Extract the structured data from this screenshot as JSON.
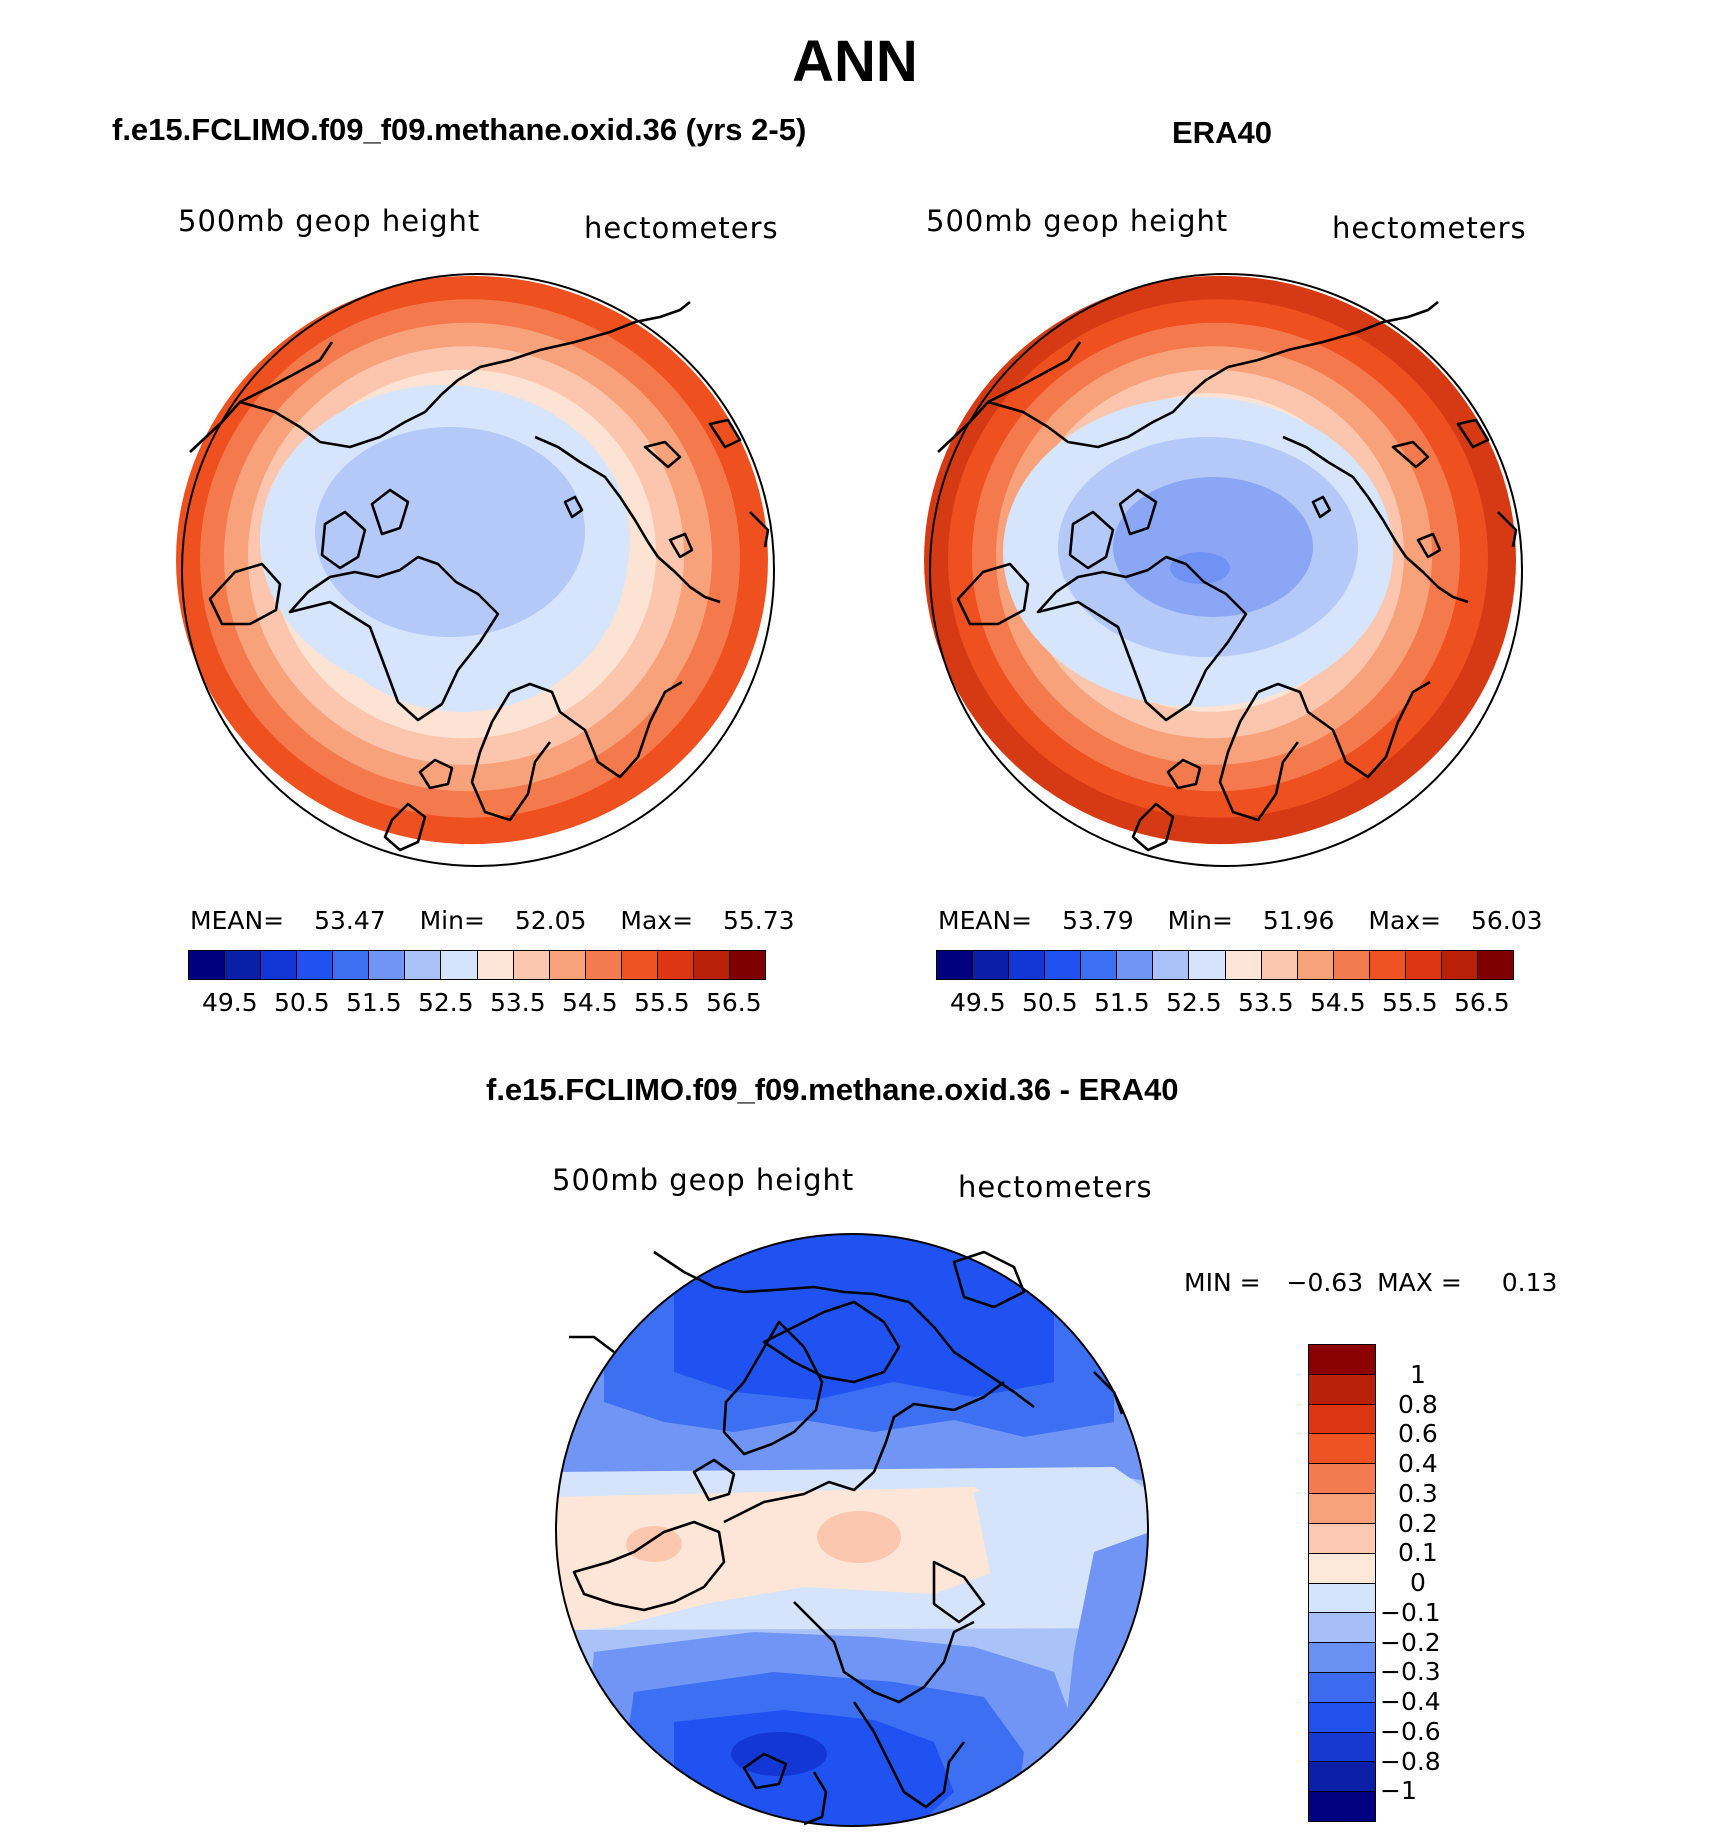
{
  "figure": {
    "title": "ANN"
  },
  "panels": [
    {
      "title": "f.e15.FCLIMO.f09_f09.methane.oxid.36 (yrs 2-5)",
      "variable_label": "500mb geop height",
      "units_label": "hectometers",
      "stats": {
        "mean_label": "MEAN=",
        "mean": "53.47",
        "min_label": "Min=",
        "min": "52.05",
        "max_label": "Max=",
        "max": "55.73"
      },
      "field_rings": [
        "#8aa6f5",
        "#b4c9f7",
        "#d6e5fb",
        "#fde3d4",
        "#fbc6ad",
        "#f8a27c",
        "#f47a4e",
        "#ee5020"
      ]
    },
    {
      "title": "ERA40",
      "variable_label": "500mb geop height",
      "units_label": "hectometers",
      "stats": {
        "mean_label": "MEAN=",
        "mean": "53.79",
        "min_label": "Min=",
        "min": "51.96",
        "max_label": "Max=",
        "max": "56.03"
      },
      "field_rings": [
        "#6f92f4",
        "#8aa6f5",
        "#b4c9f7",
        "#d6e5fb",
        "#fde3d4",
        "#fbc6ad",
        "#f8a27c",
        "#f47a4e",
        "#ee5020",
        "#d63a14"
      ]
    },
    {
      "title": "f.e15.FCLIMO.f09_f09.methane.oxid.36 - ERA40",
      "variable_label": "500mb geop height",
      "units_label": "hectometers",
      "range": {
        "min_label": "MIN =",
        "min": "−0.63",
        "max_label": "MAX =",
        "max": "0.13"
      }
    }
  ],
  "colorbar_abs": {
    "colors": [
      "#00007f",
      "#0a1fa8",
      "#1337d6",
      "#1f52f0",
      "#3d6ff2",
      "#7095f4",
      "#a9c2f7",
      "#d5e4fb",
      "#fde6d7",
      "#fbc7ae",
      "#f8a27c",
      "#f47b4f",
      "#ef5223",
      "#dc3612",
      "#b82008",
      "#7f0000"
    ],
    "labels": [
      "49.5",
      "50.5",
      "51.5",
      "52.5",
      "53.5",
      "54.5",
      "55.5",
      "56.5"
    ]
  },
  "colorbar_diff": {
    "colors": [
      "#000080",
      "#0c1fa8",
      "#1638d0",
      "#2150ec",
      "#3d6bf0",
      "#6990f3",
      "#a6c0f7",
      "#d4e4fb",
      "#fde8da",
      "#fbc9b1",
      "#f8a27c",
      "#f47b4f",
      "#ef5223",
      "#dc3612",
      "#b82008",
      "#8b0000"
    ],
    "labels": [
      "−1",
      "−0.8",
      "−0.6",
      "−0.4",
      "−0.3",
      "−0.2",
      "−0.1",
      "0",
      "0.1",
      "0.2",
      "0.3",
      "0.4",
      "0.6",
      "0.8",
      "1"
    ]
  },
  "icons": {
    "map": "north-polar-stereographic-map"
  }
}
